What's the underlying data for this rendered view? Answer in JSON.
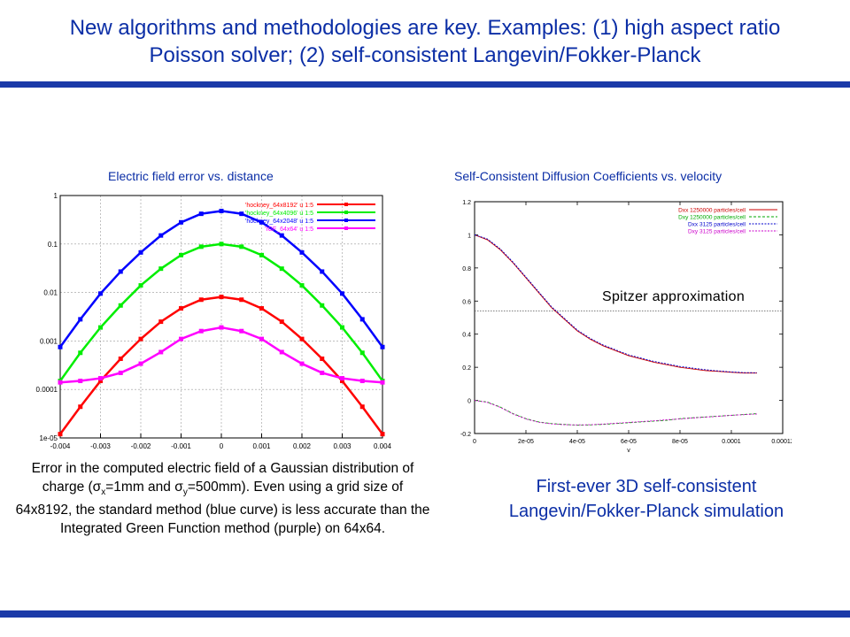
{
  "slide": {
    "title_line1": "New algorithms and methodologies are key. Examples:  (1) high aspect ratio",
    "title_line2": "Poisson solver; (2) self-consistent Langevin/Fokker-Planck",
    "accent_color": "#1b3aa8",
    "title_color": "#0b2ea6"
  },
  "left_panel": {
    "caption": "Electric field error vs. distance",
    "description": {
      "part1": "Error in the computed electric field of a Gaussian distribution of charge (",
      "sigma_x": "σ",
      "sub_x": "x",
      "part2": "=1mm and ",
      "sigma_y": "σ",
      "sub_y": "y",
      "part3": "=500mm). Even using a grid size of 64x8192, the standard method (blue curve) is less accurate than the Integrated Green Function method (purple) on 64x64."
    }
  },
  "right_panel": {
    "caption": "Self-Consistent Diffusion Coefficients vs. velocity",
    "annotation": "Spitzer approximation",
    "summary_line1": "First-ever 3D self-consistent",
    "summary_line2": "Langevin/Fokker-Planck simulation"
  },
  "chart_data": [
    {
      "type": "line",
      "title": "Electric field error vs. distance",
      "xlim": [
        -0.004,
        0.004
      ],
      "ylim": [
        1e-05,
        1
      ],
      "yscale": "log",
      "grid": true,
      "legend_position": "top-right",
      "x_ticks": [
        "-0.004",
        "-0.003",
        "-0.002",
        "-0.001",
        "0",
        "0.001",
        "0.002",
        "0.003",
        "0.004"
      ],
      "y_ticks": [
        "1e-05",
        "0.0001",
        "0.001",
        "0.01",
        "0.1",
        "1"
      ],
      "x": [
        -0.004,
        -0.0035,
        -0.003,
        -0.0025,
        -0.002,
        -0.0015,
        -0.001,
        -0.0005,
        0,
        0.0005,
        0.001,
        0.0015,
        0.002,
        0.0025,
        0.003,
        0.0035,
        0.004
      ],
      "series": [
        {
          "name": "'hockney_64x8192' u 1:5",
          "color": "#ff0000",
          "values": [
            1.2e-05,
            4.4e-05,
            0.00015,
            0.00043,
            0.0011,
            0.0025,
            0.0047,
            0.0071,
            0.0081,
            0.0071,
            0.0047,
            0.0025,
            0.0011,
            0.00043,
            0.00015,
            4.4e-05,
            1.2e-05
          ]
        },
        {
          "name": "'hockney_64x4096' u 1:5",
          "color": "#00ee00",
          "values": [
            0.00015,
            0.00057,
            0.0019,
            0.0054,
            0.014,
            0.031,
            0.059,
            0.088,
            0.1,
            0.088,
            0.059,
            0.031,
            0.014,
            0.0054,
            0.0019,
            0.00057,
            0.00015
          ]
        },
        {
          "name": "'hockney_64x2048' u 1:5",
          "color": "#0000ff",
          "values": [
            0.00075,
            0.0028,
            0.0095,
            0.027,
            0.067,
            0.15,
            0.28,
            0.42,
            0.48,
            0.42,
            0.28,
            0.15,
            0.067,
            0.027,
            0.0095,
            0.0028,
            0.00075
          ]
        },
        {
          "name": "'IGF_64x64' u 1:5",
          "color": "#ff00ff",
          "values": [
            0.00014,
            0.00015,
            0.00017,
            0.00022,
            0.00034,
            0.00059,
            0.0011,
            0.0016,
            0.0019,
            0.0016,
            0.0011,
            0.00059,
            0.00034,
            0.00022,
            0.00017,
            0.00015,
            0.00014
          ]
        }
      ]
    },
    {
      "type": "line",
      "title": "Self-Consistent Diffusion Coefficients vs. velocity",
      "xlabel": "v",
      "xlim": [
        0,
        0.00012
      ],
      "ylim": [
        -0.2,
        1.2
      ],
      "x_ticks": [
        "0",
        "2e-05",
        "4e-05",
        "6e-05",
        "8e-05",
        "0.0001",
        "0.00012"
      ],
      "y_ticks": [
        "-0.2",
        "0",
        "0.2",
        "0.4",
        "0.6",
        "0.8",
        "1",
        "1.2"
      ],
      "legend_position": "top-right",
      "reference_line": {
        "y": 0.54,
        "label": "Spitzer approximation"
      },
      "x": [
        0,
        5e-06,
        1e-05,
        1.5e-05,
        2e-05,
        2.5e-05,
        3e-05,
        3.5e-05,
        4e-05,
        4.5e-05,
        5e-05,
        5.5e-05,
        6e-05,
        6.5e-05,
        7e-05,
        7.5e-05,
        8e-05,
        8.5e-05,
        9e-05,
        9.5e-05,
        0.0001,
        0.000105,
        0.00011
      ],
      "series": [
        {
          "name": "Dxx 1250000 particles/cell",
          "color": "#cc0000",
          "values": [
            1.0,
            0.97,
            0.91,
            0.83,
            0.74,
            0.65,
            0.56,
            0.49,
            0.42,
            0.37,
            0.33,
            0.3,
            0.27,
            0.25,
            0.23,
            0.215,
            0.2,
            0.19,
            0.18,
            0.175,
            0.17,
            0.165,
            0.165
          ]
        },
        {
          "name": "Dxy 1250000 particles/cell",
          "color": "#00aa00",
          "values": [
            0.0,
            -0.01,
            -0.04,
            -0.08,
            -0.11,
            -0.13,
            -0.14,
            -0.145,
            -0.15,
            -0.148,
            -0.145,
            -0.14,
            -0.135,
            -0.13,
            -0.125,
            -0.12,
            -0.11,
            -0.105,
            -0.1,
            -0.095,
            -0.09,
            -0.085,
            -0.08
          ]
        },
        {
          "name": "Dxx 3125 particles/cell",
          "color": "#0000cc",
          "values": [
            1.0,
            0.975,
            0.915,
            0.835,
            0.745,
            0.655,
            0.565,
            0.495,
            0.425,
            0.375,
            0.335,
            0.305,
            0.275,
            0.255,
            0.235,
            0.22,
            0.205,
            0.195,
            0.185,
            0.178,
            0.172,
            0.168,
            0.167
          ]
        },
        {
          "name": "Dxy 3125 particles/cell",
          "color": "#cc00cc",
          "values": [
            0.0,
            -0.012,
            -0.042,
            -0.082,
            -0.112,
            -0.132,
            -0.142,
            -0.147,
            -0.148,
            -0.147,
            -0.143,
            -0.138,
            -0.133,
            -0.128,
            -0.123,
            -0.117,
            -0.112,
            -0.106,
            -0.101,
            -0.096,
            -0.09,
            -0.086,
            -0.082
          ]
        }
      ]
    }
  ]
}
